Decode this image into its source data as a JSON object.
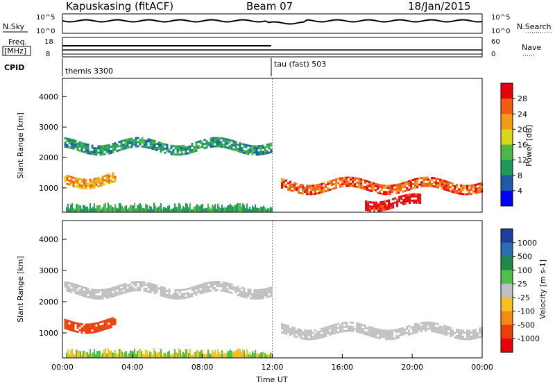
{
  "header": {
    "station": "Kapuskasing (fitACF)",
    "beam": "Beam 07",
    "date": "18/Jan/2015"
  },
  "panels": {
    "nsky": {
      "left_label": "N.Sky",
      "right_label": "N.Search",
      "left_ticks": [
        "10^5",
        "10^0"
      ],
      "right_ticks": [
        "10^5",
        "10^0"
      ]
    },
    "freq": {
      "left_label_1": "Freq.",
      "left_label_2": "[MHz]",
      "right_label": "Nave",
      "left_ticks": [
        "18",
        "8"
      ],
      "right_ticks": [
        "60",
        "0"
      ]
    },
    "cpid": {
      "label": "CPID",
      "modes": [
        "themis 3300",
        "tau (fast) 503"
      ]
    }
  },
  "power_colorbar": {
    "title": "Power [dB]",
    "labels": [
      "28",
      "24",
      "20",
      "16",
      "12",
      "8",
      "4"
    ],
    "colors": [
      "#e8000b",
      "#f25c0f",
      "#f59a14",
      "#d8d81a",
      "#4cb848",
      "#1f9a5a",
      "#1c5ca8",
      "#0000ff"
    ]
  },
  "velocity_colorbar": {
    "title": "Velocity [m s-1]",
    "labels": [
      "1000",
      "500",
      "100",
      "25",
      "-25",
      "-100",
      "-500",
      "-1000"
    ],
    "colors": [
      "#1c3fa0",
      "#2d6eb0",
      "#1f8a4a",
      "#4dc24a",
      "#c0c0c0",
      "#f5c020",
      "#f58a14",
      "#e8400b",
      "#e8000b"
    ]
  },
  "chart_data": {
    "type": "heatmap",
    "xlabel": "Time UT",
    "x_ticks": [
      "00:00",
      "04:00",
      "08:00",
      "12:00",
      "16:00",
      "20:00",
      "00:00"
    ],
    "ylabel": "Slant Range [km]",
    "y_ticks": [
      "4000",
      "3000",
      "2000",
      "1000"
    ],
    "ylim": [
      200,
      4600
    ],
    "xlim_hours": [
      0,
      24
    ],
    "mode_change_hour": 12,
    "power_bands": [
      {
        "t_start": 0.1,
        "t_end": 12,
        "range_center": 2400,
        "value_db": 8
      },
      {
        "t_start": 0.1,
        "t_end": 3,
        "range_center": 1300,
        "value_db": 20
      },
      {
        "t_start": 12.5,
        "t_end": 24,
        "range_center": 1100,
        "value_db": 24
      },
      {
        "t_start": 17.3,
        "t_end": 20.5,
        "range_center": 550,
        "value_db": 28
      }
    ],
    "velocity_bands": [
      {
        "t_start": 0.1,
        "t_end": 12,
        "range_center": 2400,
        "value_ms": 0
      },
      {
        "t_start": 0.1,
        "t_end": 3,
        "range_center": 1300,
        "value_ms": -500
      },
      {
        "t_start": 12.5,
        "t_end": 24,
        "range_center": 1100,
        "value_ms": 0
      }
    ]
  }
}
